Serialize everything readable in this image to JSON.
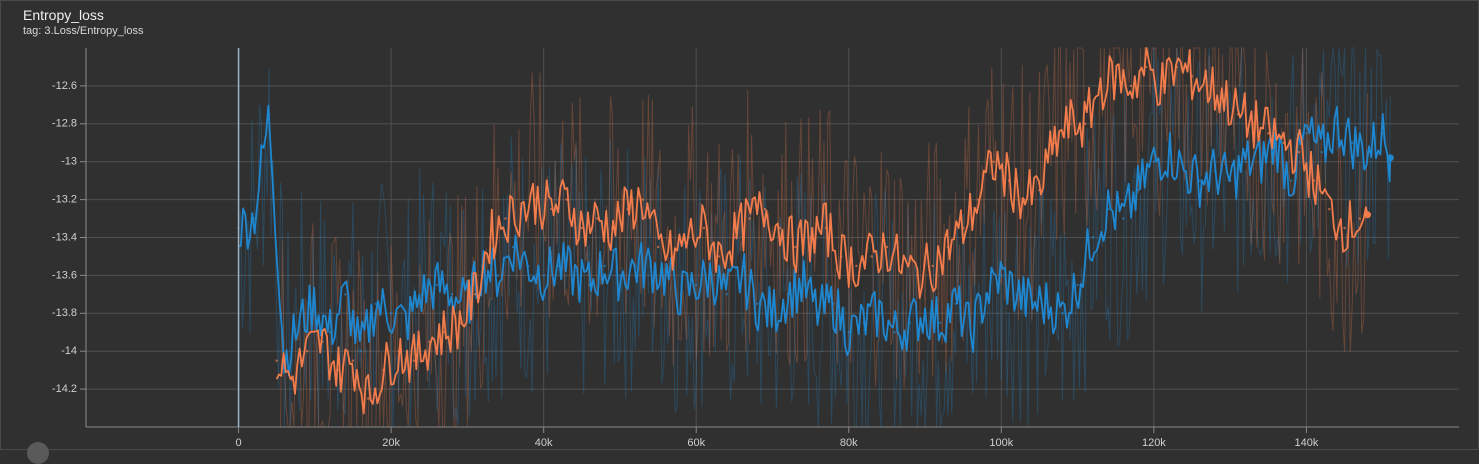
{
  "card": {
    "title": "Entropy_loss",
    "tag": "tag: 3.Loss/Entropy_loss"
  },
  "chart_data": {
    "type": "line",
    "title": "Entropy_loss",
    "xlabel": "",
    "ylabel": "",
    "xlim": [
      -20000,
      160000
    ],
    "ylim": [
      -14.4,
      -12.4
    ],
    "x_ticks": [
      0,
      20000,
      40000,
      60000,
      80000,
      100000,
      120000,
      140000
    ],
    "x_tick_labels": [
      "0",
      "20k",
      "40k",
      "60k",
      "80k",
      "100k",
      "120k",
      "140k"
    ],
    "y_ticks": [
      -12.6,
      -12.8,
      -13,
      -13.2,
      -13.4,
      -13.6,
      -13.8,
      -14,
      -14.2
    ],
    "y_tick_labels": [
      "-12.6",
      "-12.8",
      "-13",
      "-13.2",
      "-13.4",
      "-13.6",
      "-13.8",
      "-14",
      "-14.2"
    ],
    "grid": true,
    "series": [
      {
        "color": "#1f87d0",
        "x": [
          0,
          2000,
          4000,
          6000,
          8000,
          10000,
          12000,
          14000,
          16000,
          18000,
          20000,
          22000,
          24000,
          26000,
          28000,
          30000,
          32000,
          34000,
          36000,
          38000,
          40000,
          42000,
          44000,
          46000,
          48000,
          50000,
          52000,
          54000,
          56000,
          58000,
          60000,
          62000,
          64000,
          66000,
          68000,
          70000,
          72000,
          74000,
          76000,
          78000,
          80000,
          82000,
          84000,
          86000,
          88000,
          90000,
          92000,
          94000,
          96000,
          98000,
          100000,
          102000,
          104000,
          106000,
          108000,
          110000,
          112000,
          114000,
          116000,
          118000,
          120000,
          122000,
          124000,
          126000,
          128000,
          130000,
          132000,
          134000,
          136000,
          138000,
          140000,
          142000,
          144000,
          146000,
          148000,
          150000,
          151000
        ],
        "values": [
          -13.35,
          -13.3,
          -12.75,
          -14.05,
          -13.85,
          -13.75,
          -13.9,
          -13.7,
          -14.0,
          -13.75,
          -13.8,
          -13.85,
          -13.7,
          -13.65,
          -13.7,
          -13.75,
          -13.55,
          -13.6,
          -13.45,
          -13.55,
          -13.6,
          -13.55,
          -13.6,
          -13.65,
          -13.55,
          -13.6,
          -13.55,
          -13.55,
          -13.6,
          -13.7,
          -13.65,
          -13.6,
          -13.7,
          -13.6,
          -13.75,
          -13.8,
          -13.7,
          -13.65,
          -13.8,
          -13.75,
          -13.9,
          -13.85,
          -13.8,
          -13.9,
          -13.85,
          -13.8,
          -13.85,
          -13.75,
          -13.9,
          -13.7,
          -13.6,
          -13.7,
          -13.75,
          -13.75,
          -13.8,
          -13.65,
          -13.4,
          -13.25,
          -13.3,
          -13.15,
          -13.0,
          -12.95,
          -13.05,
          -13.1,
          -13.05,
          -13.1,
          -13.0,
          -13.0,
          -12.9,
          -13.1,
          -12.85,
          -12.95,
          -12.8,
          -12.9,
          -12.95,
          -12.85,
          -12.98
        ]
      },
      {
        "color": "#f27c4b",
        "x": [
          5000,
          7000,
          9000,
          11000,
          13000,
          15000,
          17000,
          19000,
          21000,
          23000,
          25000,
          27000,
          29000,
          31000,
          33000,
          35000,
          37000,
          39000,
          41000,
          43000,
          45000,
          47000,
          49000,
          51000,
          53000,
          55000,
          57000,
          59000,
          61000,
          63000,
          65000,
          67000,
          69000,
          71000,
          73000,
          75000,
          77000,
          79000,
          81000,
          83000,
          85000,
          87000,
          89000,
          91000,
          93000,
          95000,
          97000,
          99000,
          101000,
          103000,
          105000,
          107000,
          109000,
          111000,
          113000,
          115000,
          117000,
          119000,
          121000,
          123000,
          125000,
          127000,
          129000,
          131000,
          133000,
          135000,
          137000,
          139000,
          141000,
          143000,
          145000,
          147000,
          148000
        ],
        "values": [
          -14.05,
          -14.15,
          -14.0,
          -13.95,
          -14.1,
          -14.05,
          -14.25,
          -14.1,
          -14.0,
          -14.05,
          -13.95,
          -13.9,
          -13.85,
          -13.7,
          -13.4,
          -13.3,
          -13.25,
          -13.2,
          -13.25,
          -13.2,
          -13.35,
          -13.3,
          -13.35,
          -13.25,
          -13.2,
          -13.45,
          -13.5,
          -13.4,
          -13.35,
          -13.5,
          -13.4,
          -13.3,
          -13.25,
          -13.35,
          -13.45,
          -13.4,
          -13.35,
          -13.5,
          -13.55,
          -13.5,
          -13.45,
          -13.55,
          -13.6,
          -13.55,
          -13.45,
          -13.35,
          -13.2,
          -13.0,
          -13.1,
          -13.2,
          -13.15,
          -12.9,
          -12.8,
          -12.8,
          -12.6,
          -12.55,
          -12.6,
          -12.5,
          -12.6,
          -12.5,
          -12.55,
          -12.6,
          -12.65,
          -12.75,
          -12.8,
          -12.85,
          -12.9,
          -12.95,
          -13.1,
          -13.25,
          -13.35,
          -13.3,
          -13.28
        ]
      }
    ]
  }
}
